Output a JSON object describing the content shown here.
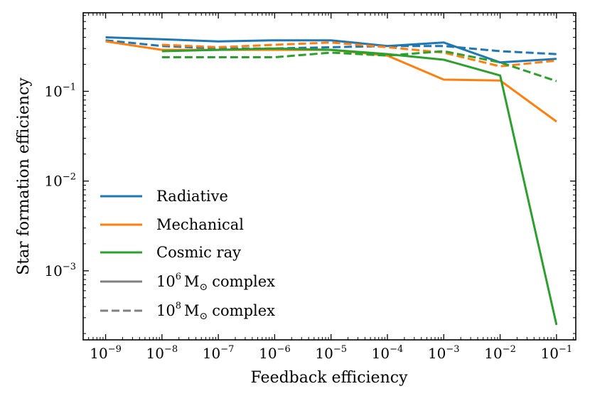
{
  "chart_data": {
    "type": "line",
    "xlabel": "Feedback efficiency",
    "ylabel": "Star formation efficiency",
    "xscale": "log",
    "yscale": "log",
    "xlim": [
      4e-10,
      0.22
    ],
    "ylim": [
      0.00017,
      0.75
    ],
    "x_ticks": [
      {
        "value": 1e-09,
        "base": "10",
        "exp": "−9"
      },
      {
        "value": 1e-08,
        "base": "10",
        "exp": "−8"
      },
      {
        "value": 1e-07,
        "base": "10",
        "exp": "−7"
      },
      {
        "value": 1e-06,
        "base": "10",
        "exp": "−6"
      },
      {
        "value": 1e-05,
        "base": "10",
        "exp": "−5"
      },
      {
        "value": 0.0001,
        "base": "10",
        "exp": "−4"
      },
      {
        "value": 0.001,
        "base": "10",
        "exp": "−3"
      },
      {
        "value": 0.01,
        "base": "10",
        "exp": "−2"
      },
      {
        "value": 0.1,
        "base": "10",
        "exp": "−1"
      }
    ],
    "y_ticks": [
      {
        "value": 0.001,
        "base": "10",
        "exp": "−3"
      },
      {
        "value": 0.01,
        "base": "10",
        "exp": "−2"
      },
      {
        "value": 0.1,
        "base": "10",
        "exp": "−1"
      }
    ],
    "colors": {
      "Radiative": "#1f77b4",
      "Mechanical": "#ff7f0e",
      "Cosmic ray": "#2ca02c",
      "neutral": "#808080"
    },
    "series": [
      {
        "name": "Radiative",
        "complex": "1e6",
        "style": "solid",
        "x": [
          1e-09,
          1e-08,
          1e-07,
          1e-06,
          1e-05,
          0.0001,
          0.001,
          0.01,
          0.1
        ],
        "y": [
          0.4,
          0.38,
          0.36,
          0.37,
          0.37,
          0.32,
          0.35,
          0.21,
          0.23
        ]
      },
      {
        "name": "Radiative",
        "complex": "1e8",
        "style": "dashed",
        "x": [
          1e-09,
          1e-08,
          1e-07,
          1e-06,
          1e-05,
          0.0001,
          0.001,
          0.01,
          0.1
        ],
        "y": [
          0.37,
          0.32,
          0.3,
          0.3,
          0.31,
          0.32,
          0.32,
          0.28,
          0.26
        ]
      },
      {
        "name": "Mechanical",
        "complex": "1e6",
        "style": "solid",
        "x": [
          1e-09,
          1e-08,
          1e-07,
          1e-06,
          1e-05,
          0.0001,
          0.001,
          0.01,
          0.1
        ],
        "y": [
          0.36,
          0.29,
          0.29,
          0.29,
          0.29,
          0.25,
          0.135,
          0.132,
          0.046
        ]
      },
      {
        "name": "Mechanical",
        "complex": "1e8",
        "style": "dashed",
        "x": [
          1e-08,
          1e-07,
          1e-06,
          1e-05,
          0.0001,
          0.001,
          0.01,
          0.1
        ],
        "y": [
          0.33,
          0.31,
          0.33,
          0.35,
          0.31,
          0.27,
          0.19,
          0.22
        ]
      },
      {
        "name": "Cosmic ray",
        "complex": "1e6",
        "style": "solid",
        "x": [
          1e-08,
          1e-07,
          1e-06,
          1e-05,
          0.0001,
          0.001,
          0.01,
          0.1
        ],
        "y": [
          0.28,
          0.29,
          0.3,
          0.29,
          0.26,
          0.225,
          0.15,
          0.00025
        ]
      },
      {
        "name": "Cosmic ray",
        "complex": "1e8",
        "style": "dashed",
        "x": [
          1e-08,
          1e-07,
          1e-06,
          1e-05,
          0.0001,
          0.001,
          0.01,
          0.1
        ],
        "y": [
          0.24,
          0.24,
          0.24,
          0.27,
          0.25,
          0.28,
          0.21,
          0.13
        ]
      }
    ],
    "legend": {
      "placement": "lower-left",
      "entries": [
        {
          "label": "Radiative",
          "color": "#1f77b4",
          "style": "solid"
        },
        {
          "label": "Mechanical",
          "color": "#ff7f0e",
          "style": "solid"
        },
        {
          "label": "Cosmic ray",
          "color": "#2ca02c",
          "style": "solid"
        },
        {
          "label_base": "10",
          "label_exp": "6",
          "label_unit": "M",
          "label_sub": "⊙",
          "label_rest": "complex",
          "color": "#808080",
          "style": "solid"
        },
        {
          "label_base": "10",
          "label_exp": "8",
          "label_unit": "M",
          "label_sub": "⊙",
          "label_rest": "complex",
          "color": "#808080",
          "style": "dashed"
        }
      ]
    }
  }
}
